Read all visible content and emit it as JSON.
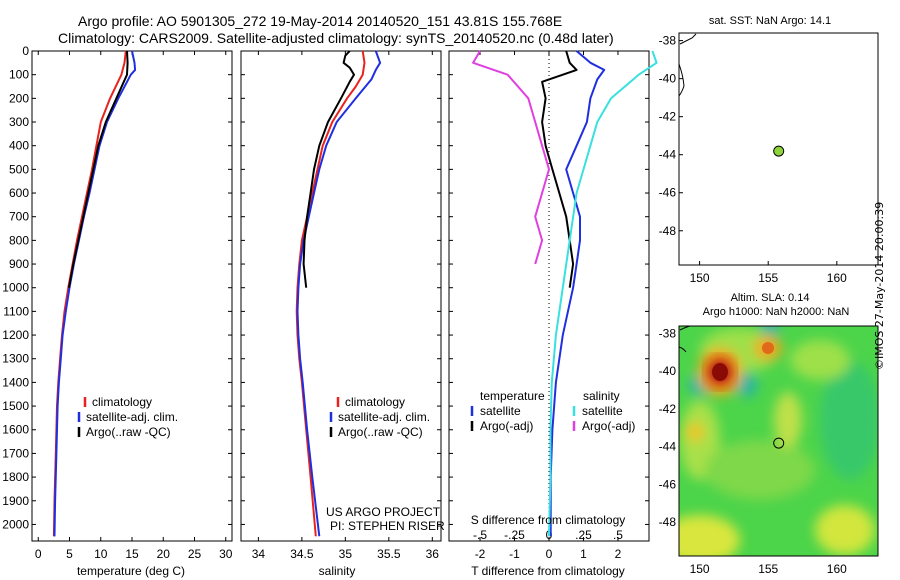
{
  "header": {
    "line1": "Argo profile: AO 5901305_272 19-May-2014 20140520_151 43.81S 155.768E",
    "line2": "Climatology: CARS2009. Satellite-adjusted climatology: synTS_20140520.nc (0.48d later)"
  },
  "colors": {
    "climatology": "#e8231d",
    "satellite": "#1f2fe0",
    "argo": "#000000",
    "sal_satellite": "#38e0e0",
    "sal_argo": "#e040e0",
    "marker": "#8fd33a"
  },
  "chart_data": [
    {
      "type": "line",
      "panel": "temperature",
      "xlabel": "temperature (deg C)",
      "xlim": [
        -1,
        31
      ],
      "ylim": [
        2070,
        0
      ],
      "xticks": [
        0,
        5,
        10,
        15,
        20,
        25,
        30
      ],
      "yticks": [
        0,
        100,
        200,
        300,
        400,
        500,
        600,
        700,
        800,
        900,
        1000,
        1100,
        1200,
        1300,
        1400,
        1500,
        1600,
        1700,
        1800,
        1900,
        2000
      ],
      "legend": [
        "climatology",
        "satellite-adj. clim.",
        "Argo(..raw -QC)"
      ],
      "series": [
        {
          "name": "climatology",
          "depth": [
            0,
            50,
            100,
            200,
            300,
            400,
            500,
            600,
            700,
            800,
            900,
            1000,
            1100,
            1200,
            1300,
            1400,
            1500,
            1700,
            1900,
            2050
          ],
          "values": [
            14.0,
            13.8,
            13.3,
            11.5,
            10.0,
            9.3,
            8.6,
            7.8,
            7.0,
            6.2,
            5.5,
            4.8,
            4.2,
            3.8,
            3.5,
            3.2,
            3.0,
            2.8,
            2.6,
            2.5
          ]
        },
        {
          "name": "satellite-adj. clim.",
          "depth": [
            0,
            50,
            80,
            100,
            200,
            300,
            400,
            500,
            600,
            700,
            800,
            900,
            1000,
            1100,
            1200,
            1300,
            1400,
            1500,
            1700,
            1900,
            2050
          ],
          "values": [
            15.0,
            15.4,
            15.5,
            14.8,
            12.8,
            11.0,
            9.8,
            9.0,
            8.2,
            7.3,
            6.5,
            5.7,
            5.0,
            4.4,
            3.9,
            3.6,
            3.3,
            3.1,
            2.9,
            2.7,
            2.6
          ]
        },
        {
          "name": "Argo(..raw -QC)",
          "depth": [
            0,
            50,
            100,
            200,
            300,
            400,
            500,
            600,
            700,
            800,
            900,
            1000
          ],
          "values": [
            14.2,
            14.3,
            14.2,
            12.5,
            10.8,
            9.6,
            8.8,
            8.0,
            7.2,
            6.4,
            5.6,
            4.9
          ]
        }
      ]
    },
    {
      "type": "line",
      "panel": "salinity",
      "xlabel": "salinity",
      "xlim": [
        33.8,
        36.1
      ],
      "ylim": [
        2070,
        0
      ],
      "xticks": [
        34,
        34.5,
        35,
        35.5,
        36
      ],
      "legend": [
        "climatology",
        "satellite-adj. clim.",
        "Argo(..raw -QC)"
      ],
      "annotations": [
        "US ARGO PROJECT",
        "PI: STEPHEN RISER"
      ],
      "series": [
        {
          "name": "climatology",
          "depth": [
            0,
            50,
            100,
            150,
            200,
            300,
            400,
            500,
            600,
            700,
            800,
            900,
            1000,
            1100,
            1200,
            1300,
            1400,
            1600,
            1800,
            2050
          ],
          "values": [
            35.2,
            35.22,
            35.2,
            35.12,
            35.02,
            34.85,
            34.74,
            34.68,
            34.62,
            34.56,
            34.5,
            34.47,
            34.45,
            34.44,
            34.45,
            34.47,
            34.5,
            34.55,
            34.6,
            34.66
          ]
        },
        {
          "name": "satellite-adj. clim.",
          "depth": [
            0,
            50,
            80,
            120,
            200,
            300,
            400,
            500,
            600,
            700,
            800,
            900,
            1000,
            1100,
            1200,
            1300,
            1400,
            1600,
            1800,
            2050
          ],
          "values": [
            35.35,
            35.4,
            35.35,
            35.3,
            35.12,
            34.9,
            34.78,
            34.7,
            34.64,
            34.58,
            34.52,
            34.48,
            34.46,
            34.45,
            34.46,
            34.48,
            34.51,
            34.56,
            34.62,
            34.7
          ]
        },
        {
          "name": "Argo(..raw -QC)",
          "depth": [
            0,
            20,
            50,
            70,
            100,
            130,
            200,
            300,
            400,
            500,
            600,
            700,
            800,
            900,
            1000
          ],
          "values": [
            35.05,
            35.0,
            34.98,
            35.05,
            35.1,
            35.05,
            34.95,
            34.8,
            34.7,
            34.64,
            34.6,
            34.56,
            34.53,
            34.52,
            34.55
          ]
        }
      ]
    },
    {
      "type": "line",
      "panel": "difference",
      "xlabel": "T difference from climatology",
      "xlabel2": "S difference from climatology",
      "xlim": [
        -2.9,
        2.9
      ],
      "ylim": [
        2070,
        0
      ],
      "xticks": [
        -2,
        -1,
        0,
        1,
        2
      ],
      "xticks2": [
        -0.5,
        -0.25,
        0,
        0.25,
        0.5
      ],
      "legend_headers": [
        "temperature",
        "salinity"
      ],
      "legend": [
        "satellite",
        "Argo(-adj)",
        "satellite",
        "Argo(-adj)"
      ],
      "series": [
        {
          "name": "temperature satellite",
          "depth": [
            0,
            50,
            80,
            120,
            200,
            300,
            400,
            500,
            600,
            700,
            800,
            900,
            1000,
            1200,
            1400,
            1600,
            1800,
            2050
          ],
          "values": [
            0.8,
            1.2,
            1.6,
            1.4,
            1.2,
            1.1,
            0.8,
            0.5,
            0.7,
            0.9,
            0.9,
            0.8,
            0.7,
            0.4,
            0.2,
            0.1,
            0.05,
            0.05
          ]
        },
        {
          "name": "temperature Argo(-adj)",
          "depth": [
            0,
            50,
            80,
            100,
            130,
            200,
            300,
            400,
            500,
            600,
            700,
            800,
            900,
            1000
          ],
          "values": [
            0.5,
            0.6,
            0.8,
            0.4,
            -0.2,
            -0.1,
            -0.2,
            -0.1,
            0.1,
            0.3,
            0.5,
            0.6,
            0.7,
            0.6
          ]
        },
        {
          "name": "salinity satellite",
          "depth": [
            0,
            50,
            100,
            200,
            300,
            400,
            500,
            600,
            800,
            1000,
            1200,
            1400,
            1600,
            1800,
            2050
          ],
          "values": [
            0.75,
            0.78,
            0.65,
            0.45,
            0.35,
            0.3,
            0.25,
            0.2,
            0.15,
            0.1,
            0.05,
            0.02,
            0.01,
            0.01,
            0.0
          ]
        },
        {
          "name": "salinity Argo(-adj)",
          "depth": [
            0,
            50,
            100,
            200,
            300,
            400,
            500,
            600,
            700,
            800,
            900
          ],
          "values": [
            -0.5,
            -0.55,
            -0.3,
            -0.15,
            -0.1,
            -0.05,
            0.0,
            -0.05,
            -0.1,
            -0.05,
            -0.1
          ]
        }
      ]
    },
    {
      "type": "scatter",
      "panel": "sst-map",
      "title": "sat. SST: NaN Argo: 14.1",
      "xlim": [
        148.5,
        163
      ],
      "ylim": [
        -49.8,
        -37.6
      ],
      "xticks": [
        150,
        155,
        160
      ],
      "yticks": [
        -38,
        -40,
        -42,
        -44,
        -46,
        -48
      ],
      "points": [
        {
          "lon": 155.768,
          "lat": -43.81
        }
      ]
    },
    {
      "type": "heatmap",
      "panel": "sla-map",
      "title1": "Altim. SLA: 0.14",
      "title2": "Argo h1000: NaN h2000: NaN",
      "xlim": [
        148.5,
        163
      ],
      "ylim": [
        -49.8,
        -37.6
      ],
      "xticks": [
        150,
        155,
        160
      ],
      "yticks": [
        -38,
        -40,
        -42,
        -44,
        -46,
        -48
      ],
      "points": [
        {
          "lon": 155.768,
          "lat": -43.81
        }
      ]
    }
  ],
  "side_label": "©IMOS 27-May-2014 20:00:39"
}
